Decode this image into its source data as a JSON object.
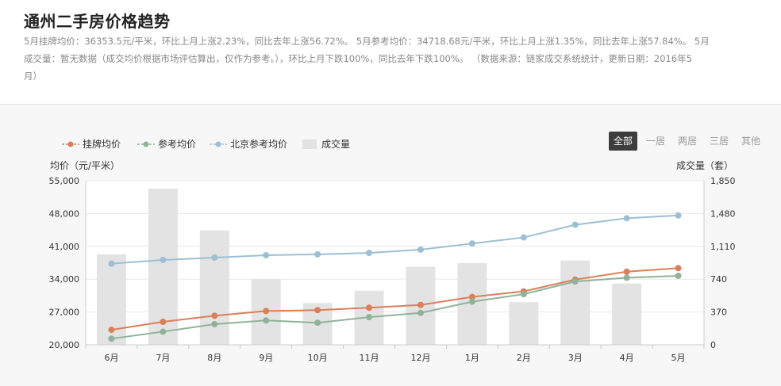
{
  "header": {
    "title": "通州二手房价格趋势",
    "summary_lines": [
      "5月挂牌均价：36353.5元/平米，环比上月上涨2.23%，同比去年上涨56.72%。  5月参考均价：34718.68元/平米，环比上月上涨1.35%，同比去年上涨57.84%。  5月",
      "成交量：暂无数据（成交均价根据市场评估算出，仅作为参考。），环比上月下跌100%，同比去年下跌100%。   （数据来源：链家成交系统统计，更新日期：2016年5",
      "月）"
    ]
  },
  "filters": {
    "tabs": [
      "全部",
      "一居",
      "两居",
      "三居",
      "其他"
    ],
    "active": "全部"
  },
  "colors": {
    "listing": "#d9805a",
    "reference": "#8fb39a",
    "beijing": "#9dbfd4",
    "volume": "#e3e3e3",
    "grid": "#e8e8e8",
    "axis": "#cccccc"
  },
  "chart_data": {
    "type": "bar+line",
    "categories": [
      "6月",
      "7月",
      "8月",
      "9月",
      "10月",
      "11月",
      "12月",
      "1月",
      "2月",
      "3月",
      "4月",
      "5月"
    ],
    "series": [
      {
        "name": "挂牌均价",
        "type": "line",
        "axis": "left",
        "color_key": "listing",
        "values": [
          23200,
          24900,
          26200,
          27200,
          27400,
          27900,
          28500,
          30200,
          31400,
          33900,
          35600,
          36353.5
        ]
      },
      {
        "name": "参考均价",
        "type": "line",
        "axis": "left",
        "color_key": "reference",
        "values": [
          21300,
          22800,
          24400,
          25200,
          24700,
          25900,
          26800,
          29200,
          30800,
          33500,
          34300,
          34718.68
        ]
      },
      {
        "name": "北京参考均价",
        "type": "line",
        "axis": "left",
        "color_key": "beijing",
        "values": [
          37300,
          38100,
          38600,
          39100,
          39300,
          39600,
          40300,
          41600,
          42900,
          45600,
          47000,
          47600
        ]
      },
      {
        "name": "成交量",
        "type": "bar",
        "axis": "right",
        "color_key": "volume",
        "values": [
          1020,
          1760,
          1290,
          740,
          470,
          610,
          880,
          920,
          480,
          950,
          690,
          0
        ]
      }
    ],
    "legend": [
      "挂牌均价",
      "参考均价",
      "北京参考均价",
      "成交量"
    ],
    "legend_position": "top-left",
    "left_axis": {
      "title": "均价（元/平米）",
      "ylim": [
        20000,
        55000
      ],
      "ticks": [
        20000,
        27000,
        34000,
        41000,
        48000,
        55000
      ],
      "tick_labels": [
        "20,000",
        "27,000",
        "34,000",
        "41,000",
        "48,000",
        "55,000"
      ]
    },
    "right_axis": {
      "title": "成交量（套）",
      "ylim": [
        0,
        1850
      ],
      "ticks": [
        0,
        370,
        740,
        1110,
        1480,
        1850
      ],
      "tick_labels": [
        "0",
        "370",
        "740",
        "1,110",
        "1,480",
        "1,850"
      ]
    },
    "grid": true
  }
}
